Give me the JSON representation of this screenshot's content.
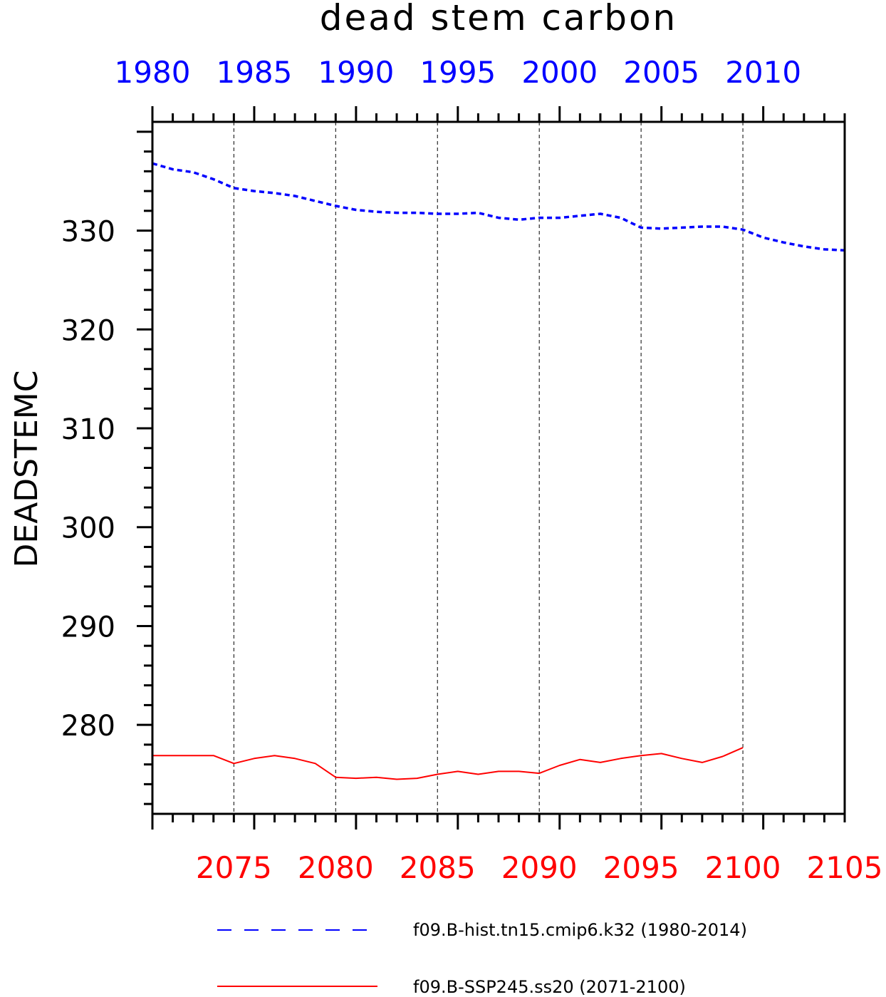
{
  "chart_data": {
    "type": "line",
    "title": "dead stem carbon",
    "ylabel": "DEADSTEMC",
    "ylim": [
      271,
      341
    ],
    "y_ticks": [
      280,
      290,
      300,
      310,
      320,
      330
    ],
    "grid": "vertical dashed at labeled x ticks",
    "x_top": {
      "color": "#0000ff",
      "range": [
        1980,
        2014
      ],
      "tick_labels": [
        1980,
        1985,
        1990,
        1995,
        2000,
        2005,
        2010
      ]
    },
    "x_bottom": {
      "color": "#ff0000",
      "range": [
        2071,
        2105
      ],
      "tick_labels": [
        2075,
        2080,
        2085,
        2090,
        2095,
        2100,
        2105
      ]
    },
    "series": [
      {
        "name": "f09.B-hist.tn15.cmip6.k32 (1980-2014)",
        "axis": "top",
        "color": "#0000ff",
        "style": "dashed",
        "x": [
          1980,
          1981,
          1982,
          1983,
          1984,
          1985,
          1986,
          1987,
          1988,
          1989,
          1990,
          1991,
          1992,
          1993,
          1994,
          1995,
          1996,
          1997,
          1998,
          1999,
          2000,
          2001,
          2002,
          2003,
          2004,
          2005,
          2006,
          2007,
          2008,
          2009,
          2010,
          2011,
          2012,
          2013,
          2014
        ],
        "values": [
          336.8,
          336.2,
          335.9,
          335.2,
          334.3,
          334.0,
          333.8,
          333.5,
          333.0,
          332.5,
          332.1,
          331.9,
          331.8,
          331.8,
          331.7,
          331.7,
          331.8,
          331.3,
          331.1,
          331.3,
          331.3,
          331.5,
          331.7,
          331.3,
          330.3,
          330.2,
          330.3,
          330.4,
          330.4,
          330.1,
          329.3,
          328.8,
          328.4,
          328.1,
          328.0
        ]
      },
      {
        "name": "f09.B-SSP245.ss20 (2071-2100)",
        "axis": "bottom",
        "color": "#ff0000",
        "style": "solid",
        "x": [
          2071,
          2072,
          2073,
          2074,
          2075,
          2076,
          2077,
          2078,
          2079,
          2080,
          2081,
          2082,
          2083,
          2084,
          2085,
          2086,
          2087,
          2088,
          2089,
          2090,
          2091,
          2092,
          2093,
          2094,
          2095,
          2096,
          2097,
          2098,
          2099,
          2100
        ],
        "values": [
          276.9,
          276.9,
          276.9,
          276.9,
          276.1,
          276.6,
          276.9,
          276.6,
          276.1,
          274.7,
          274.6,
          274.7,
          274.5,
          274.6,
          275.0,
          275.3,
          275.0,
          275.3,
          275.3,
          275.1,
          275.9,
          276.5,
          276.2,
          276.6,
          276.9,
          277.1,
          276.6,
          276.2,
          276.8,
          277.7
        ]
      }
    ]
  }
}
